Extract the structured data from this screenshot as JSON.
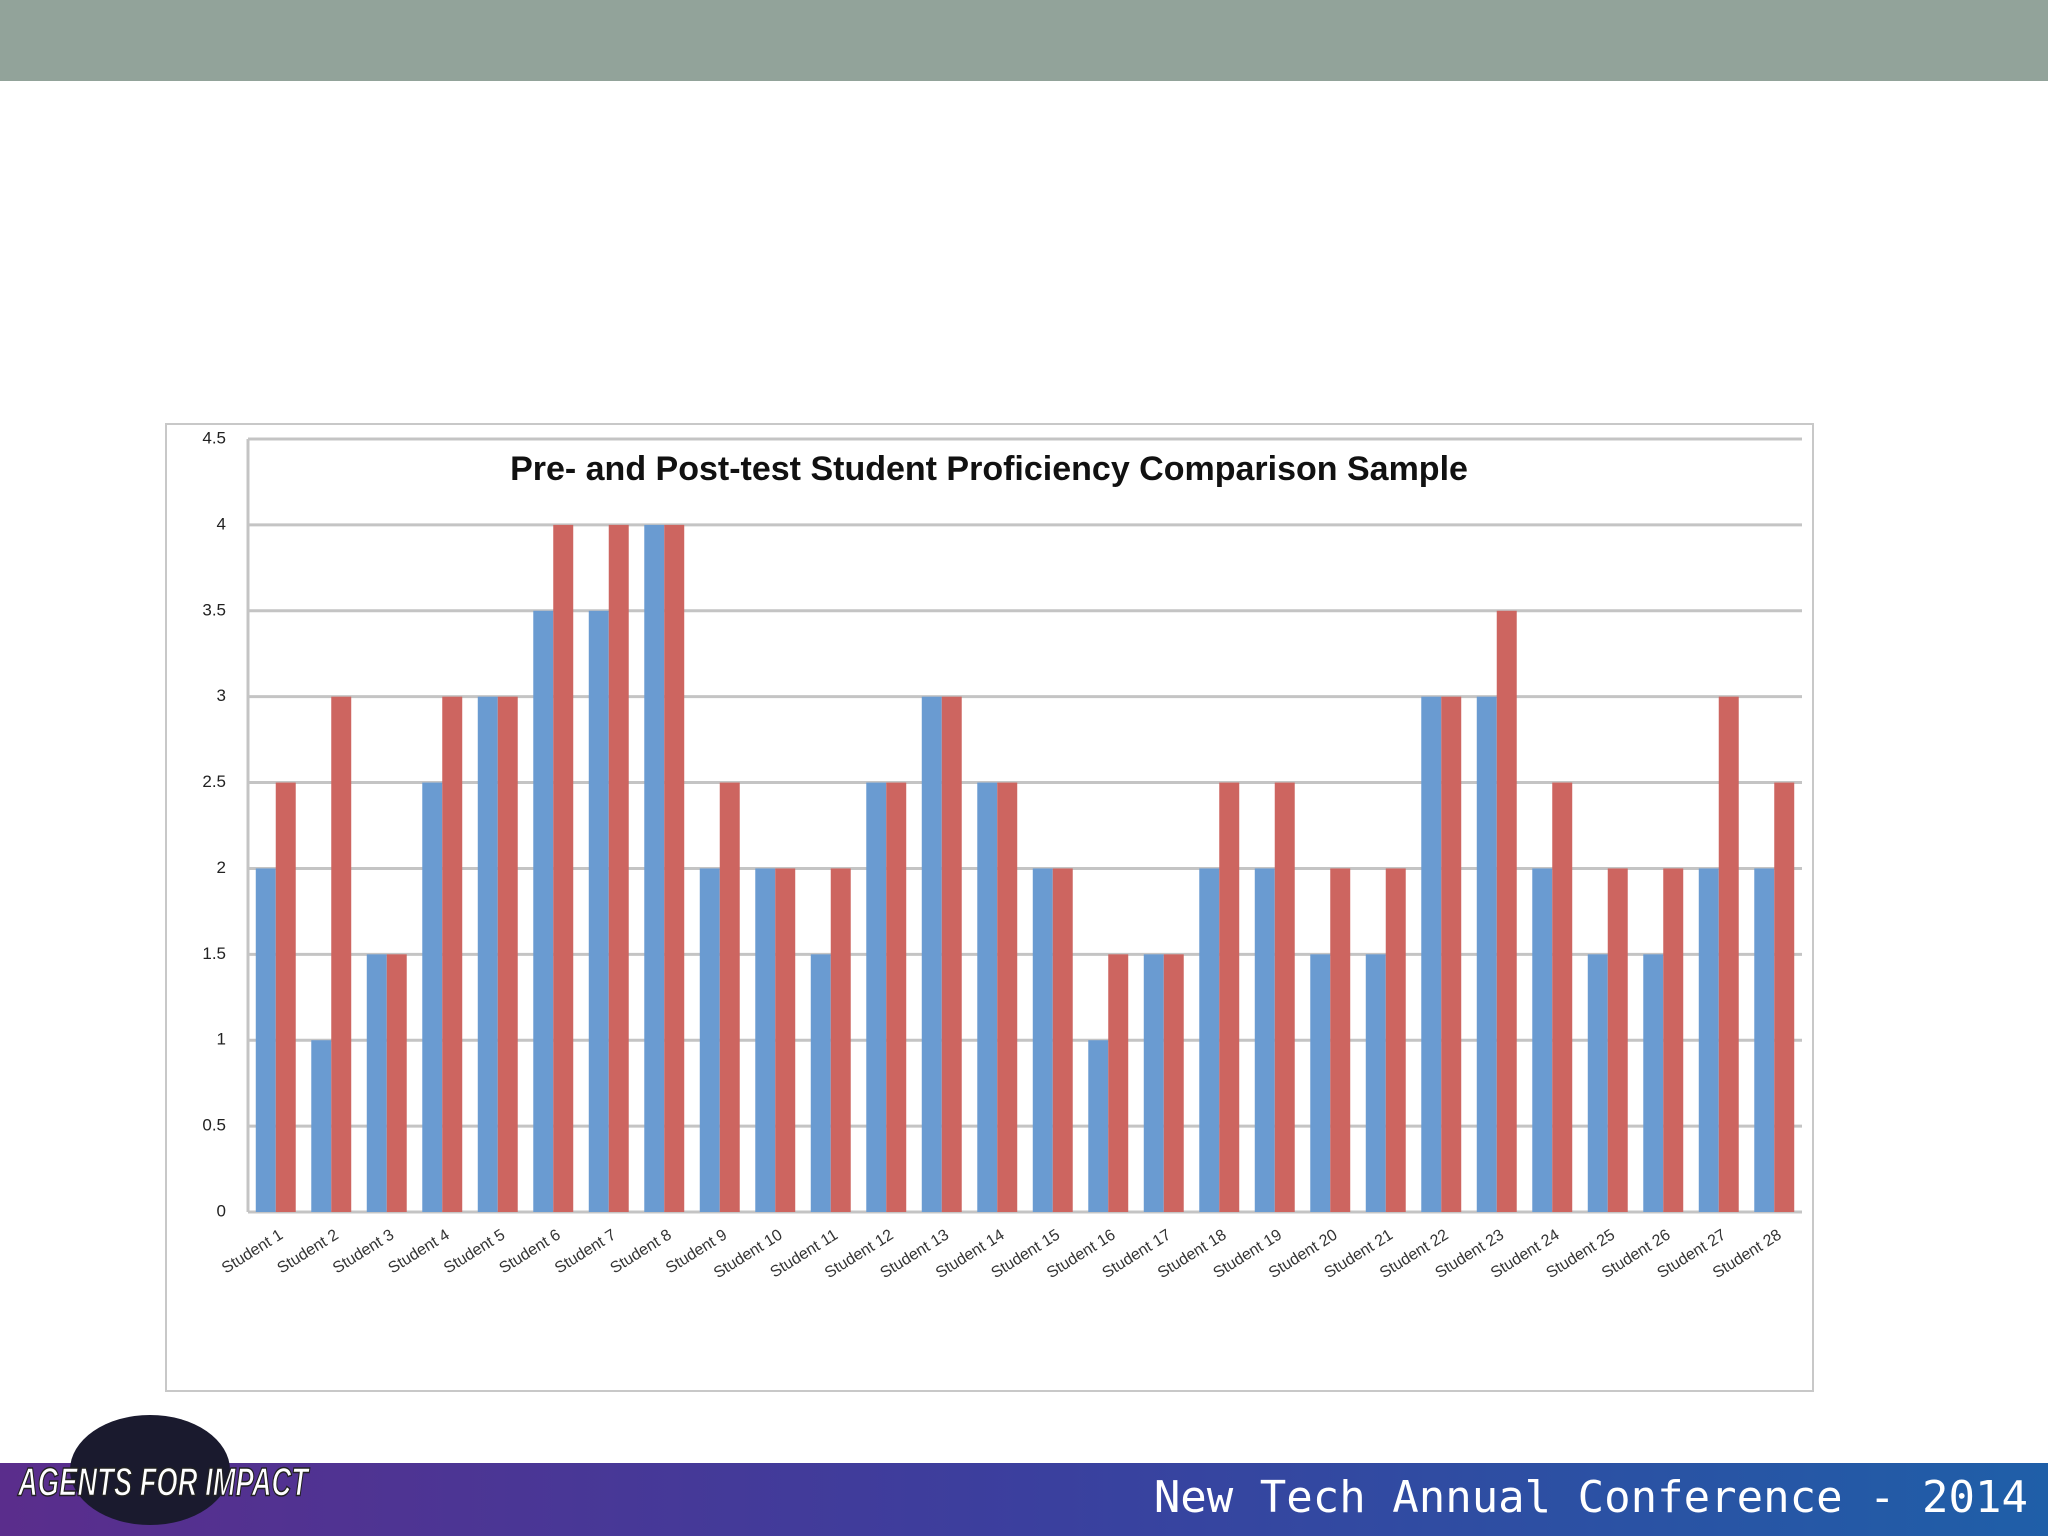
{
  "chart_data": {
    "type": "bar",
    "title": "Pre- and Post-test Student Proficiency Comparison Sample",
    "categories": [
      "Student 1",
      "Student 2",
      "Student 3",
      "Student 4",
      "Student 5",
      "Student 6",
      "Student 7",
      "Student 8",
      "Student 9",
      "Student 10",
      "Student 11",
      "Student 12",
      "Student 13",
      "Student 14",
      "Student 15",
      "Student 16",
      "Student 17",
      "Student 18",
      "Student 19",
      "Student 20",
      "Student 21",
      "Student 22",
      "Student 23",
      "Student 24",
      "Student 25",
      "Student 26",
      "Student 27",
      "Student 28"
    ],
    "series": [
      {
        "color": "#6a9bd1",
        "values": [
          2,
          1,
          1.5,
          2.5,
          3,
          3.5,
          3.5,
          4,
          2,
          2,
          1.5,
          2.5,
          3,
          2.5,
          2,
          1,
          1.5,
          2,
          2,
          1.5,
          1.5,
          3,
          3,
          2,
          1.5,
          1.5,
          2,
          2
        ]
      },
      {
        "color": "#cd6560",
        "values": [
          2.5,
          3,
          1.5,
          3,
          3,
          4,
          4,
          4,
          2.5,
          2,
          2,
          2.5,
          3,
          2.5,
          2,
          1.5,
          1.5,
          2.5,
          2.5,
          2,
          2,
          3,
          3.5,
          2.5,
          2,
          2,
          3,
          2.5
        ]
      }
    ],
    "ylim": [
      0,
      4.5
    ],
    "yticks": [
      0,
      0.5,
      1,
      1.5,
      2,
      2.5,
      3,
      3.5,
      4,
      4.5
    ],
    "grid": true
  },
  "footer": {
    "logo": "AGENTS FOR IMPACT",
    "conference": "New Tech Annual Conference - 2014"
  }
}
